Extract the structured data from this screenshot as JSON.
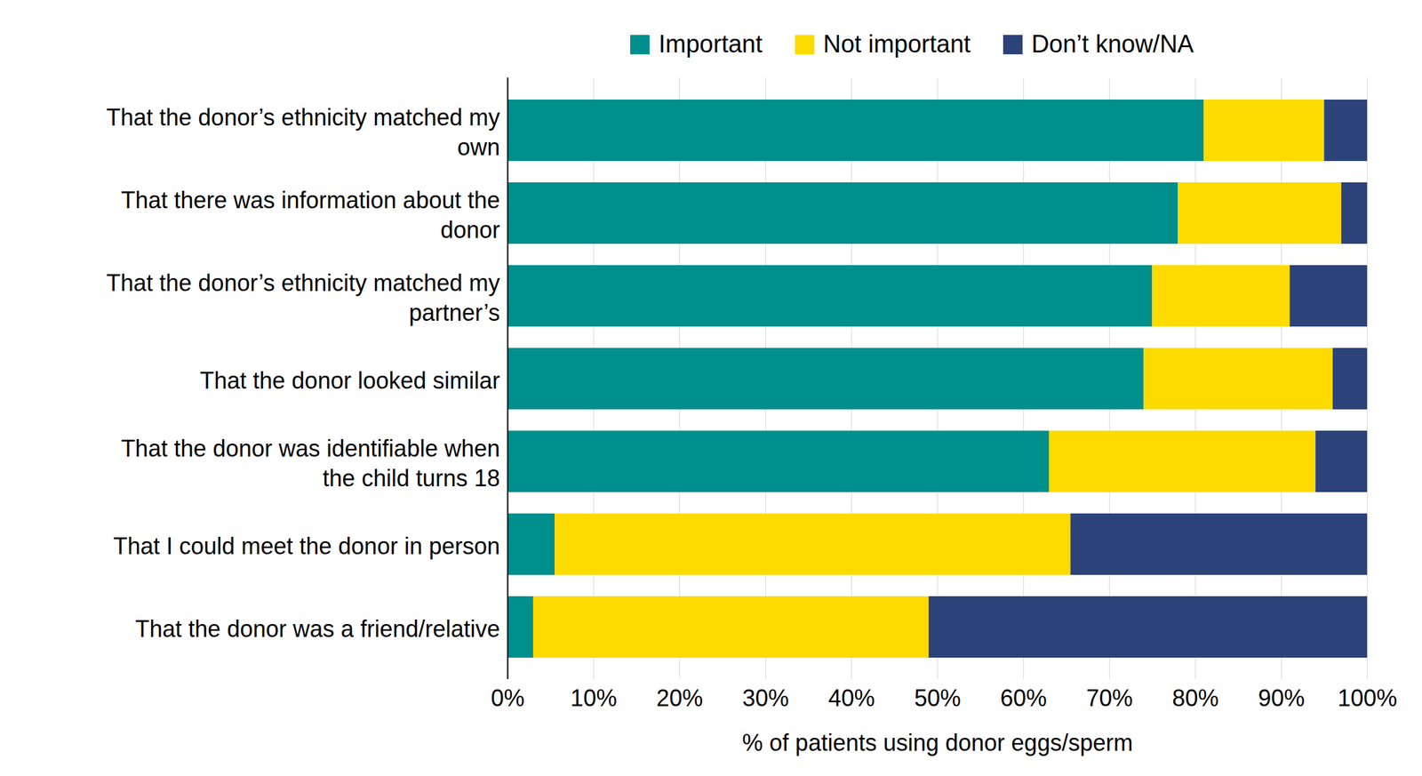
{
  "chart_data": {
    "type": "bar",
    "orientation": "horizontal",
    "stacked": true,
    "grid": true,
    "legend": "top",
    "data_labels": false,
    "categories": [
      "That the donor’s ethnicity matched my own",
      "That there was information about the donor",
      "That the donor’s ethnicity matched my partner’s",
      "That the donor looked similar",
      "That the donor was identifiable when the child turns 18",
      "That I could meet the donor in person",
      "That the donor was a friend/relative"
    ],
    "series": [
      {
        "name": "Important",
        "color": "#008f8c",
        "values": [
          81,
          78,
          75,
          74,
          63,
          5.5,
          3
        ]
      },
      {
        "name": "Not important",
        "color": "#fddb00",
        "values": [
          14,
          19,
          16,
          22,
          31,
          60,
          46
        ]
      },
      {
        "name": "Don’t know/NA",
        "color": "#2c437a",
        "values": [
          5,
          3,
          9,
          4,
          6,
          34.5,
          51
        ]
      }
    ],
    "xlabel": "% of patients using donor eggs/sperm",
    "xlim": [
      0,
      100
    ],
    "xticks": [
      {
        "value": 0,
        "label": "0%"
      },
      {
        "value": 10,
        "label": "10%"
      },
      {
        "value": 20,
        "label": "20%"
      },
      {
        "value": 30,
        "label": "30%"
      },
      {
        "value": 40,
        "label": "40%"
      },
      {
        "value": 50,
        "label": "50%"
      },
      {
        "value": 60,
        "label": "60%"
      },
      {
        "value": 70,
        "label": "70%"
      },
      {
        "value": 80,
        "label": "80%"
      },
      {
        "value": 90,
        "label": "90%"
      },
      {
        "value": 100,
        "label": "100%"
      }
    ]
  }
}
